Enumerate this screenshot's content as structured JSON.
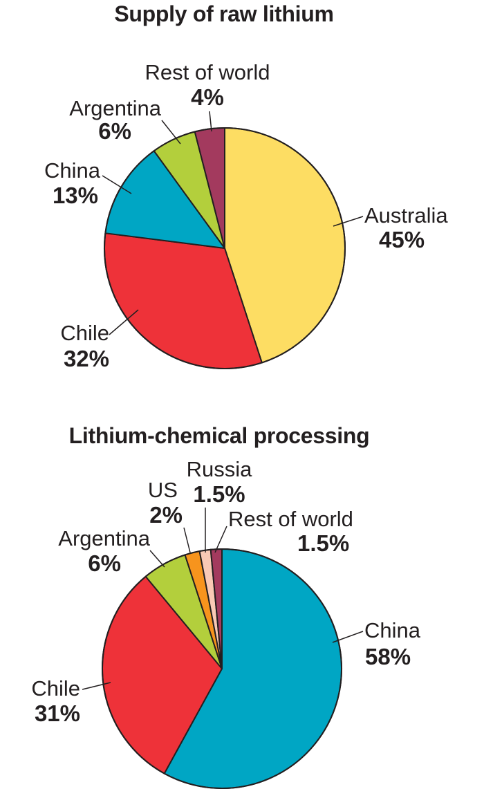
{
  "chart_data": [
    {
      "type": "pie",
      "title": "Supply of raw lithium",
      "start": "12 o'clock",
      "direction": "clockwise",
      "slices": [
        {
          "label": "Australia",
          "value": 45,
          "value_label": "45%",
          "color": "#fddd63"
        },
        {
          "label": "Chile",
          "value": 32,
          "value_label": "32%",
          "color": "#ee3239"
        },
        {
          "label": "China",
          "value": 13,
          "value_label": "13%",
          "color": "#00a6c4"
        },
        {
          "label": "Argentina",
          "value": 6,
          "value_label": "6%",
          "color": "#b3cf3c"
        },
        {
          "label": "Rest of world",
          "value": 4,
          "value_label": "4%",
          "color": "#a33a5e"
        }
      ]
    },
    {
      "type": "pie",
      "title": "Lithium-chemical processing",
      "start": "12 o'clock",
      "direction": "clockwise",
      "slices": [
        {
          "label": "China",
          "value": 58,
          "value_label": "58%",
          "color": "#00a6c4"
        },
        {
          "label": "Chile",
          "value": 31,
          "value_label": "31%",
          "color": "#ee3239"
        },
        {
          "label": "Argentina",
          "value": 6,
          "value_label": "6%",
          "color": "#b3cf3c"
        },
        {
          "label": "US",
          "value": 2,
          "value_label": "2%",
          "color": "#f7941d"
        },
        {
          "label": "Russia",
          "value": 1.5,
          "value_label": "1.5%",
          "color": "#f9c9b5"
        },
        {
          "label": "Rest of world",
          "value": 1.5,
          "value_label": "1.5%",
          "color": "#a33a5e"
        }
      ]
    }
  ]
}
